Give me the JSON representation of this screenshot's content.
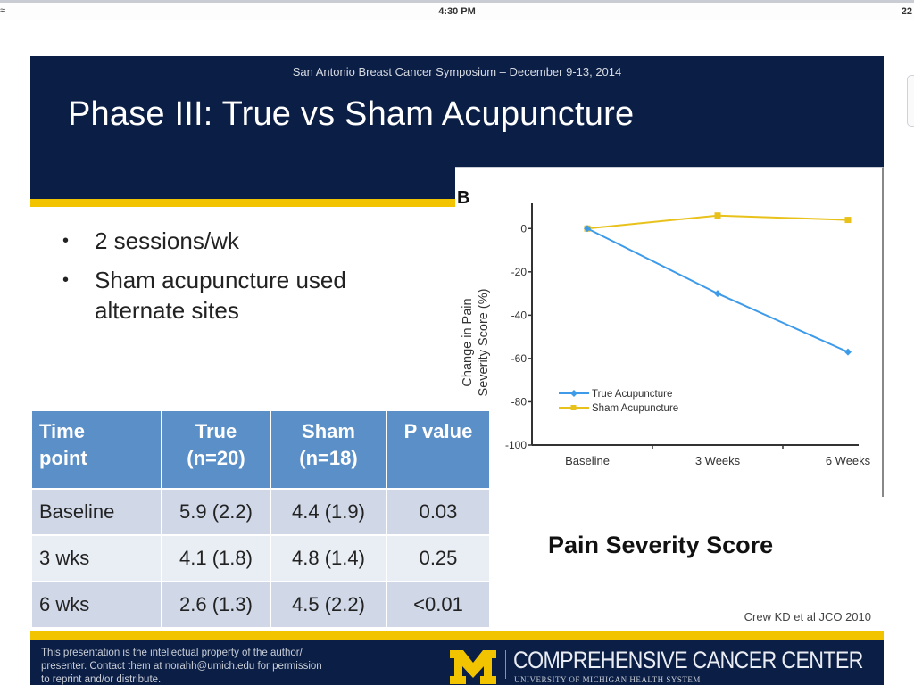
{
  "status_bar": {
    "time": "4:30 PM",
    "battery": "22",
    "signal_icon": "wifi-icon"
  },
  "slide": {
    "conference": "San Antonio Breast Cancer Symposium – December 9-13, 2014",
    "title": "Phase III: True vs Sham Acupuncture",
    "bullets": [
      {
        "text": "2 sessions/wk"
      },
      {
        "text": "Sham acupuncture used alternate sites"
      }
    ],
    "table": {
      "headers": [
        [
          "Time",
          "point"
        ],
        [
          "True",
          "(n=20)"
        ],
        [
          "Sham",
          "(n=18)"
        ],
        [
          "P value"
        ]
      ],
      "rows": [
        [
          "Baseline",
          "5.9 (2.2)",
          "4.4 (1.9)",
          "0.03"
        ],
        [
          "3 wks",
          "4.1 (1.8)",
          "4.8 (1.4)",
          "0.25"
        ],
        [
          "6 wks",
          "2.6 (1.3)",
          "4.5 (2.2)",
          "<0.01"
        ]
      ]
    },
    "chart_caption": "Pain Severity Score",
    "citation": "Crew KD et al JCO 2010",
    "footer": {
      "notice_line1": "This presentation is the intellectual property of the author/",
      "notice_line2": "presenter.  Contact them at norahh@umich.edu for permission",
      "notice_line3": "to  reprint and/or distribute.",
      "logo_letter": "M",
      "org_name": "COMPREHENSIVE CANCER CENTER",
      "org_sub": "UNIVERSITY OF MICHIGAN HEALTH SYSTEM"
    }
  },
  "colors": {
    "navy": "#0b1e45",
    "gold": "#f2c400",
    "table_header": "#5b8fc7",
    "true_series": "#3d9be9",
    "sham_series": "#e8c21a"
  },
  "chart_data": {
    "type": "line",
    "panel_label": "B",
    "title": "",
    "xlabel": "",
    "ylabel_line1": "Change in Pain",
    "ylabel_line2": "Severity Score (%)",
    "categories": [
      "Baseline",
      "3 Weeks",
      "6 Weeks"
    ],
    "ylim": [
      -100,
      10
    ],
    "yticks": [
      0,
      -20,
      -40,
      -60,
      -80,
      -100
    ],
    "ytick_labels": [
      "0",
      "-20",
      "-40",
      "-60",
      "-80",
      "-100"
    ],
    "grid": false,
    "legend_position": "bottom-left",
    "series": [
      {
        "name": "True Acupuncture",
        "marker": "diamond",
        "color": "#3d9be9",
        "values": [
          0,
          -30,
          -57
        ]
      },
      {
        "name": "Sham Acupuncture",
        "marker": "square",
        "color": "#e8c21a",
        "values": [
          0,
          6,
          4
        ]
      }
    ]
  }
}
